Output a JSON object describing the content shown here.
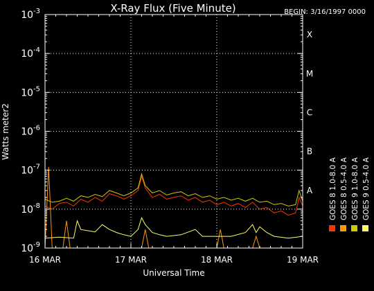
{
  "chart_data": {
    "type": "line",
    "title": "X-Ray Flux (Five Minute)",
    "begin_label": "BEGIN: 3/16/1997 0000",
    "xlabel": "Universal Time",
    "ylabel": "Watts meter2",
    "x_ticks": [
      {
        "t": 0,
        "label": "16 MAR"
      },
      {
        "t": 24,
        "label": "17 MAR"
      },
      {
        "t": 48,
        "label": "18 MAR"
      },
      {
        "t": 72,
        "label": "19 MAR"
      }
    ],
    "x_range_hours": [
      0,
      72
    ],
    "y_scale": "log",
    "y_range": [
      1e-09,
      0.001
    ],
    "y_ticks": [
      {
        "exp": -9,
        "base": "10",
        "sup": "-9"
      },
      {
        "exp": -8,
        "base": "10",
        "sup": "-8"
      },
      {
        "exp": -7,
        "base": "10",
        "sup": "-7"
      },
      {
        "exp": -6,
        "base": "10",
        "sup": "-6"
      },
      {
        "exp": -5,
        "base": "10",
        "sup": "-5"
      },
      {
        "exp": -4,
        "base": "10",
        "sup": "-4"
      },
      {
        "exp": -3,
        "base": "10",
        "sup": "-3"
      }
    ],
    "flare_classes": [
      {
        "label": "A",
        "exp": -8
      },
      {
        "label": "B",
        "exp": -7
      },
      {
        "label": "C",
        "exp": -6
      },
      {
        "label": "M",
        "exp": -5
      },
      {
        "label": "X",
        "exp": -4
      }
    ],
    "grid": true,
    "series": [
      {
        "name": "GOES 8 1.0-8.0 A",
        "color": "#ff3300",
        "points": [
          [
            0,
            1.2e-08
          ],
          [
            2,
            1e-08
          ],
          [
            4,
            1.4e-08
          ],
          [
            6,
            1.5e-08
          ],
          [
            8,
            1.2e-08
          ],
          [
            10,
            1.8e-08
          ],
          [
            12,
            1.5e-08
          ],
          [
            14,
            2e-08
          ],
          [
            16,
            1.6e-08
          ],
          [
            18,
            2.5e-08
          ],
          [
            20,
            2.2e-08
          ],
          [
            22,
            1.8e-08
          ],
          [
            24,
            2.2e-08
          ],
          [
            26,
            3e-08
          ],
          [
            27,
            7e-08
          ],
          [
            28,
            3.5e-08
          ],
          [
            30,
            2e-08
          ],
          [
            32,
            2.4e-08
          ],
          [
            34,
            1.8e-08
          ],
          [
            36,
            2e-08
          ],
          [
            38,
            2.2e-08
          ],
          [
            40,
            1.7e-08
          ],
          [
            42,
            2e-08
          ],
          [
            44,
            1.5e-08
          ],
          [
            46,
            1.7e-08
          ],
          [
            48,
            1.3e-08
          ],
          [
            50,
            1.5e-08
          ],
          [
            52,
            1.2e-08
          ],
          [
            54,
            1.4e-08
          ],
          [
            56,
            1.1e-08
          ],
          [
            58,
            1.5e-08
          ],
          [
            60,
            1e-08
          ],
          [
            62,
            1.1e-08
          ],
          [
            64,
            8e-09
          ],
          [
            66,
            9e-09
          ],
          [
            68,
            7e-09
          ],
          [
            70,
            8e-09
          ],
          [
            71,
            2e-08
          ],
          [
            72,
            1.2e-08
          ]
        ]
      },
      {
        "name": "GOES 8 0.5-4.0 A",
        "color": "#ff9900",
        "points": [
          [
            0,
            1e-09
          ],
          [
            1,
            1.2e-07
          ],
          [
            2,
            1e-09
          ],
          [
            5,
            1e-09
          ],
          [
            6,
            5e-09
          ],
          [
            7,
            1e-09
          ],
          [
            10,
            1e-09
          ],
          [
            27,
            1e-09
          ],
          [
            28,
            3e-09
          ],
          [
            29,
            1e-09
          ],
          [
            48,
            1e-09
          ],
          [
            49,
            3e-09
          ],
          [
            50,
            1e-09
          ],
          [
            58,
            1e-09
          ],
          [
            59,
            2e-09
          ],
          [
            60,
            1e-09
          ],
          [
            72,
            1e-09
          ]
        ]
      },
      {
        "name": "GOES 9 0.5-4.0 A",
        "color": "#ffff66",
        "points": [
          [
            0,
            1.8e-09
          ],
          [
            4,
            1.9e-09
          ],
          [
            8,
            1.8e-09
          ],
          [
            9,
            5e-09
          ],
          [
            10,
            3e-09
          ],
          [
            14,
            2.6e-09
          ],
          [
            16,
            4e-09
          ],
          [
            18,
            3e-09
          ],
          [
            20,
            2.5e-09
          ],
          [
            22,
            2.2e-09
          ],
          [
            24,
            2e-09
          ],
          [
            26,
            3e-09
          ],
          [
            27,
            6e-09
          ],
          [
            28,
            4e-09
          ],
          [
            30,
            2.5e-09
          ],
          [
            32,
            2.2e-09
          ],
          [
            34,
            2e-09
          ],
          [
            38,
            2.2e-09
          ],
          [
            42,
            3e-09
          ],
          [
            44,
            2e-09
          ],
          [
            48,
            2e-09
          ],
          [
            52,
            2e-09
          ],
          [
            56,
            2.5e-09
          ],
          [
            58,
            4e-09
          ],
          [
            59,
            2.5e-09
          ],
          [
            60,
            3.5e-09
          ],
          [
            62,
            2.5e-09
          ],
          [
            64,
            2e-09
          ],
          [
            68,
            1.8e-09
          ],
          [
            72,
            2e-09
          ]
        ]
      },
      {
        "name": "GOES 9 1.0-8.0 A",
        "color": "#cccc00",
        "points": [
          [
            0,
            1.8e-08
          ],
          [
            2,
            1.5e-08
          ],
          [
            4,
            1.6e-08
          ],
          [
            6,
            1.9e-08
          ],
          [
            8,
            1.6e-08
          ],
          [
            10,
            2.2e-08
          ],
          [
            12,
            2e-08
          ],
          [
            14,
            2.4e-08
          ],
          [
            16,
            2.1e-08
          ],
          [
            18,
            3e-08
          ],
          [
            20,
            2.6e-08
          ],
          [
            22,
            2.2e-08
          ],
          [
            24,
            2.6e-08
          ],
          [
            26,
            3.5e-08
          ],
          [
            27,
            8e-08
          ],
          [
            28,
            4e-08
          ],
          [
            30,
            2.6e-08
          ],
          [
            32,
            3e-08
          ],
          [
            34,
            2.3e-08
          ],
          [
            36,
            2.6e-08
          ],
          [
            38,
            2.8e-08
          ],
          [
            40,
            2.2e-08
          ],
          [
            42,
            2.5e-08
          ],
          [
            44,
            2e-08
          ],
          [
            46,
            2.2e-08
          ],
          [
            48,
            1.8e-08
          ],
          [
            50,
            2e-08
          ],
          [
            52,
            1.7e-08
          ],
          [
            54,
            1.9e-08
          ],
          [
            56,
            1.6e-08
          ],
          [
            58,
            1.9e-08
          ],
          [
            60,
            1.5e-08
          ],
          [
            62,
            1.6e-08
          ],
          [
            64,
            1.3e-08
          ],
          [
            66,
            1.4e-08
          ],
          [
            68,
            1.2e-08
          ],
          [
            70,
            1.3e-08
          ],
          [
            71,
            3e-08
          ],
          [
            72,
            1.6e-08
          ]
        ]
      }
    ],
    "legend_order": [
      "GOES 8 1.0-8.0 A",
      "GOES 8 0.5-4.0 A",
      "GOES 9 1.0-8.0 A",
      "GOES 9 0.5-4.0 A"
    ]
  }
}
